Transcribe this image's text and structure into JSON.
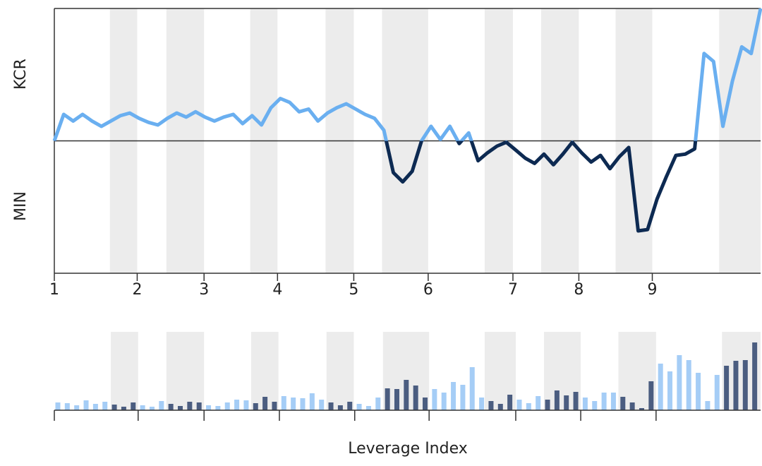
{
  "chart_data": [
    {
      "type": "line",
      "ylabel_top": "KCR",
      "ylabel_bottom": "MIN",
      "color_above": "#6aaff0",
      "color_below": "#0d2a52",
      "band_color": "#ececec",
      "highlight_ranges": [
        [
          5.9,
          8.8
        ],
        [
          11.9,
          15.9
        ],
        [
          20.8,
          23.7
        ],
        [
          28.8,
          31.8
        ],
        [
          34.8,
          39.7
        ],
        [
          45.7,
          48.7
        ],
        [
          51.7,
          55.7
        ],
        [
          59.6,
          63.5
        ],
        [
          70.6,
          75
        ]
      ],
      "x": [
        0,
        1,
        2,
        3,
        4,
        5,
        6,
        7,
        8,
        9,
        10,
        11,
        12,
        13,
        14,
        15,
        16,
        17,
        18,
        19,
        20,
        21,
        22,
        23,
        24,
        25,
        26,
        27,
        28,
        29,
        30,
        31,
        32,
        33,
        34,
        35,
        36,
        37,
        38,
        39,
        40,
        41,
        42,
        43,
        44,
        45,
        46,
        47,
        48,
        49,
        50,
        51,
        52,
        53,
        54,
        55,
        56,
        57,
        58,
        59,
        60,
        61,
        62,
        63,
        64,
        65,
        66,
        67,
        68,
        69,
        70,
        71,
        72,
        73,
        74,
        75
      ],
      "values": [
        0,
        20,
        15,
        20,
        15,
        11,
        15,
        19,
        21,
        17,
        14,
        12,
        17,
        21,
        18,
        22,
        18,
        15,
        18,
        20,
        13,
        19,
        12,
        25,
        32,
        29,
        22,
        24,
        15,
        21,
        25,
        28,
        24,
        20,
        17,
        8,
        -24,
        -31,
        -23,
        0,
        11,
        1,
        11,
        -2,
        6,
        -15,
        -9,
        -4,
        -1,
        -7,
        -13,
        -17,
        -10,
        -18,
        -10,
        -1,
        -9,
        -16,
        -11,
        -21,
        -12,
        -5,
        -68,
        -67,
        -44,
        -27,
        -11,
        -10,
        -6,
        66,
        60,
        11,
        45,
        71,
        66,
        100
      ],
      "xlim": [
        0,
        75
      ],
      "ylim": [
        -100,
        100
      ],
      "xticks": [
        0,
        {
          "value": 8.8,
          "label": "2"
        },
        {
          "value": 15.9,
          "label": "3"
        },
        {
          "value": 23.7,
          "label": "4"
        },
        {
          "value": 31.8,
          "label": "5"
        },
        {
          "value": 39.7,
          "label": "6"
        },
        {
          "value": 48.7,
          "label": "7"
        },
        {
          "value": 55.7,
          "label": "8"
        },
        {
          "value": 63.5,
          "label": "9"
        }
      ],
      "xtick_first_label": "1"
    },
    {
      "type": "bar",
      "xlabel": "Leverage Index",
      "band_color": "#ececec",
      "highlight_ranges": [
        [
          6.0,
          8.9
        ],
        [
          11.9,
          15.9
        ],
        [
          20.9,
          23.8
        ],
        [
          28.9,
          31.8
        ],
        [
          34.9,
          39.8
        ],
        [
          45.7,
          49.0
        ],
        [
          52.0,
          55.9
        ],
        [
          59.9,
          63.9
        ],
        [
          70.9,
          75
        ]
      ],
      "x": [
        0,
        1,
        2,
        3,
        4,
        5,
        6,
        7,
        8,
        9,
        10,
        11,
        12,
        13,
        14,
        15,
        16,
        17,
        18,
        19,
        20,
        21,
        22,
        23,
        24,
        25,
        26,
        27,
        28,
        29,
        30,
        31,
        32,
        33,
        34,
        35,
        36,
        37,
        38,
        39,
        40,
        41,
        42,
        43,
        44,
        45,
        46,
        47,
        48,
        49,
        50,
        51,
        52,
        53,
        54,
        55,
        56,
        57,
        58,
        59,
        60,
        61,
        62,
        63,
        64,
        65,
        66,
        67,
        68,
        69,
        70,
        71,
        72,
        73,
        74
      ],
      "series": [
        {
          "color": "#a5cdf6",
          "values": [
            11,
            10,
            7,
            14,
            9,
            12,
            null,
            null,
            null,
            7,
            5,
            13,
            null,
            null,
            null,
            null,
            7,
            6,
            11,
            15,
            14,
            null,
            null,
            null,
            20,
            18,
            17,
            24,
            15,
            null,
            null,
            null,
            9,
            6,
            18,
            null,
            null,
            null,
            null,
            null,
            30,
            25,
            40,
            36,
            61,
            18,
            null,
            null,
            null,
            15,
            10,
            20,
            null,
            null,
            null,
            null,
            18,
            13,
            25,
            25,
            null,
            null,
            null,
            null,
            66,
            55,
            78,
            71,
            53,
            13,
            50,
            null,
            null,
            null,
            null
          ]
        },
        {
          "color": "#4b5d80",
          "values": [
            null,
            null,
            null,
            null,
            null,
            null,
            8,
            5,
            11,
            null,
            null,
            null,
            9,
            6,
            12,
            11,
            null,
            null,
            null,
            null,
            null,
            10,
            19,
            12,
            null,
            null,
            null,
            null,
            null,
            11,
            7,
            12,
            null,
            null,
            null,
            31,
            30,
            43,
            35,
            18,
            null,
            null,
            null,
            null,
            null,
            null,
            13,
            9,
            22,
            null,
            null,
            null,
            15,
            28,
            21,
            26,
            null,
            null,
            null,
            null,
            19,
            11,
            3,
            41,
            null,
            null,
            null,
            null,
            null,
            null,
            null,
            63,
            70,
            71,
            96
          ]
        }
      ],
      "xlim": [
        0,
        75
      ],
      "ylim": [
        0,
        100
      ],
      "xticks": [
        0,
        8.9,
        15.9,
        23.9,
        31.9,
        39.8,
        49.0,
        55.9,
        63.9
      ]
    }
  ]
}
